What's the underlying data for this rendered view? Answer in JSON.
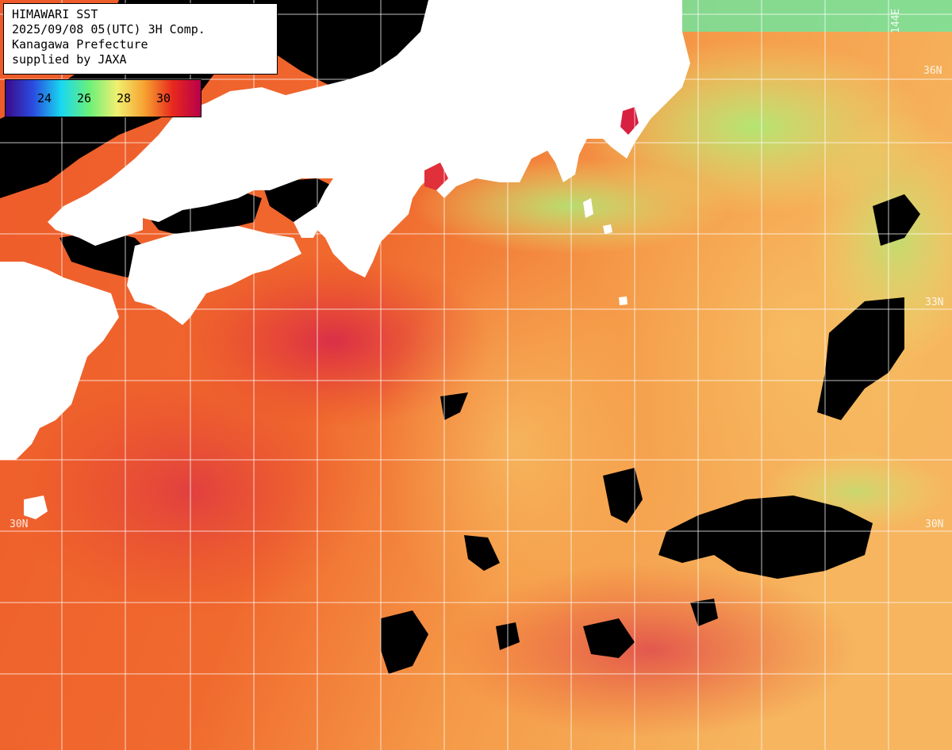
{
  "header": {
    "line1": "HIMAWARI SST",
    "line2": "2025/09/08 05(UTC) 3H Comp.",
    "line3": "Kanagawa Prefecture",
    "line4": "supplied by JAXA"
  },
  "colorbar": {
    "ticks": [
      "24",
      "26",
      "28",
      "30"
    ],
    "stops": [
      "#3a0a8a",
      "#2a4de0",
      "#18d8f0",
      "#6af07a",
      "#f0f070",
      "#f7a030",
      "#e8281e",
      "#b8004a"
    ]
  },
  "grid": {
    "lat_labels": [
      "36N",
      "33N",
      "33N",
      "30N",
      "30N"
    ],
    "lon_label": "144E"
  },
  "colors": {
    "land": "#ffffff",
    "no_data": "#000000",
    "sea_warm": "#f26a2a",
    "sea_hot": "#e2302a",
    "sea_cool": "#a8f08a",
    "grid": "#ffffff"
  }
}
